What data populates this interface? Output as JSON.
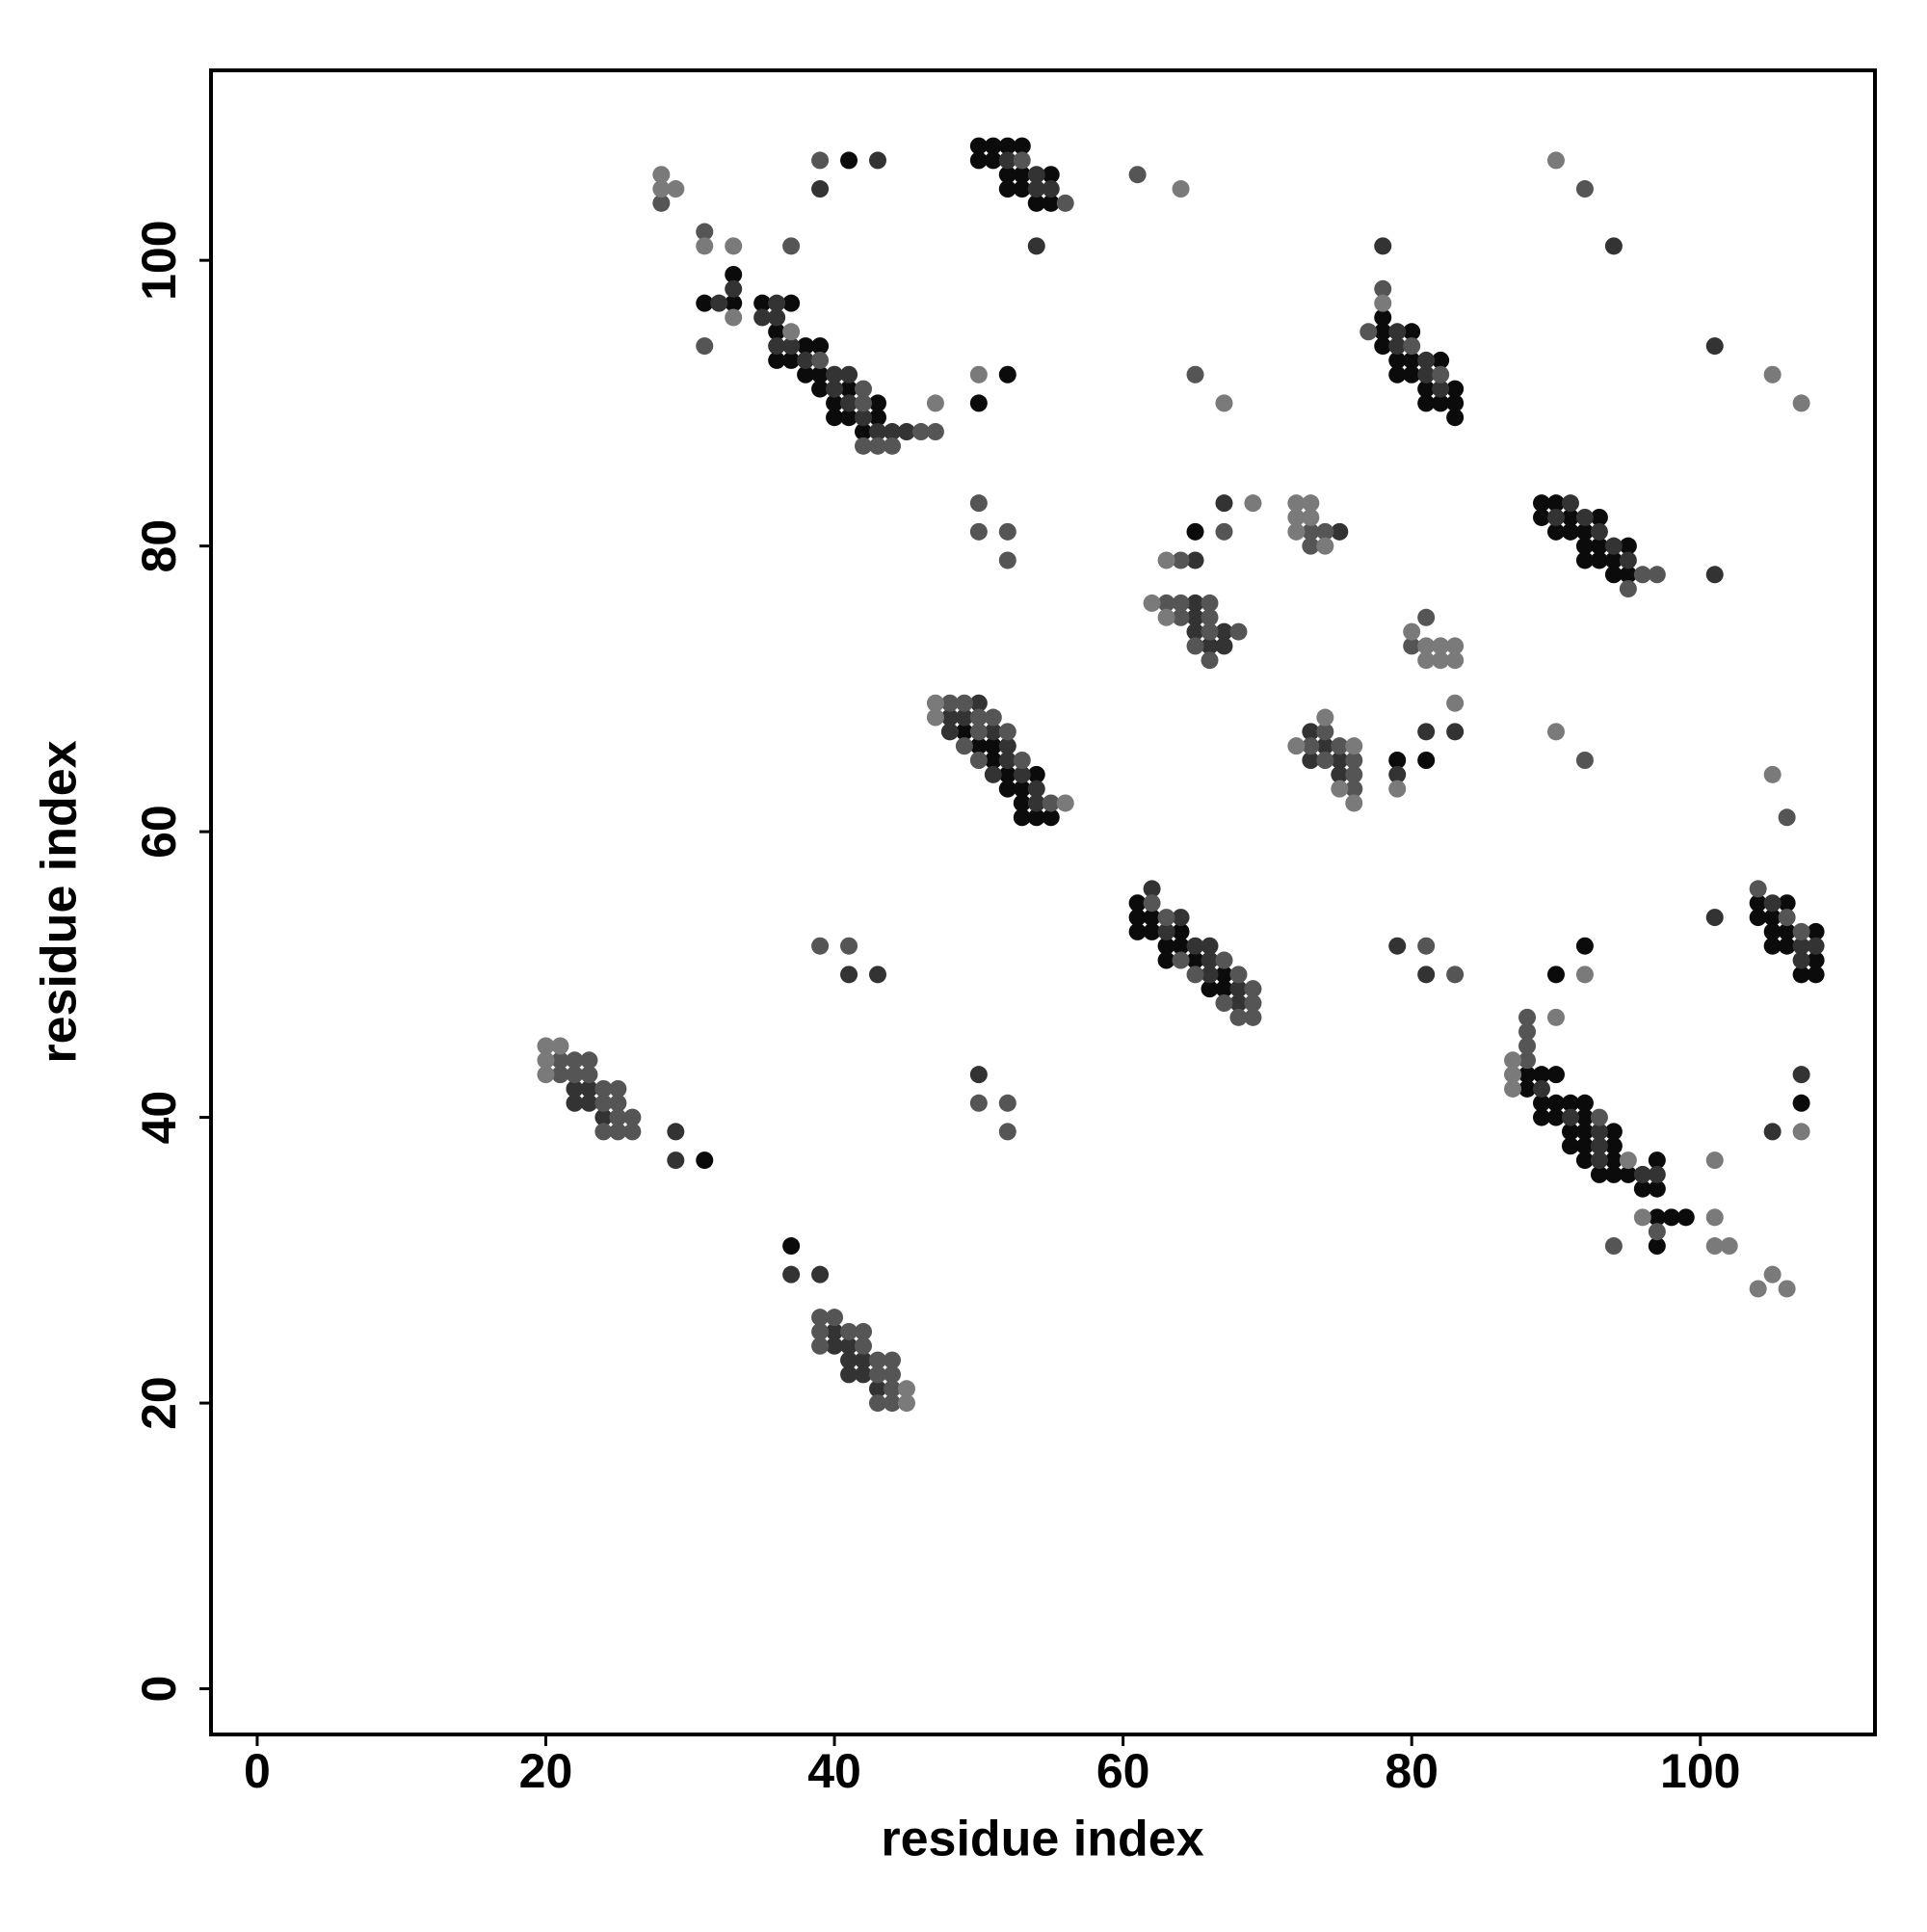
{
  "chart_data": {
    "type": "scatter",
    "xlabel": "residue index",
    "ylabel": "residue index",
    "xlim": [
      -3.2,
      112.1
    ],
    "ylim": [
      -3.2,
      113.3
    ],
    "xticks": [
      0,
      20,
      40,
      60,
      80,
      100
    ],
    "yticks": [
      0,
      20,
      40,
      60,
      80,
      100
    ],
    "series": [
      {
        "color": "#0b0b0b",
        "x": [
          31,
          37,
          41,
          33,
          33,
          31,
          35,
          37,
          36,
          38,
          39,
          36,
          37,
          38,
          39,
          39,
          41,
          40,
          43,
          40,
          41,
          43,
          42,
          50,
          52,
          50,
          51,
          52,
          53,
          50,
          51,
          52,
          53,
          55,
          52,
          53,
          54,
          55,
          49,
          50,
          51,
          51,
          52,
          54,
          52,
          53,
          53,
          53,
          54,
          55,
          61,
          61,
          62,
          61,
          62,
          64,
          63,
          64,
          63,
          65,
          67,
          66,
          67,
          65,
          79,
          81,
          78,
          78,
          80,
          78,
          79,
          80,
          82,
          79,
          80,
          81,
          83,
          81,
          82,
          83,
          83,
          89,
          90,
          89,
          91,
          93,
          90,
          91,
          92,
          92,
          93,
          95,
          92,
          93,
          94,
          94,
          95,
          88,
          89,
          90,
          88,
          89,
          90,
          91,
          92,
          90,
          92,
          89,
          91,
          92,
          94,
          91,
          92,
          94,
          92,
          94,
          97,
          93,
          94,
          95,
          96,
          97,
          97,
          98,
          99,
          97,
          90,
          92,
          107,
          104,
          106,
          104,
          105,
          105,
          106,
          108,
          105,
          106,
          108,
          107,
          108
        ],
        "y": [
          37,
          31,
          107,
          99,
          97,
          97,
          97,
          97,
          95,
          94,
          94,
          93,
          93,
          92,
          92,
          91,
          91,
          90,
          90,
          89,
          89,
          89,
          88,
          90,
          92,
          108,
          108,
          108,
          108,
          107,
          107,
          106,
          106,
          106,
          105,
          105,
          104,
          104,
          67,
          66,
          66,
          65,
          64,
          64,
          63,
          63,
          62,
          61,
          61,
          61,
          55,
          54,
          54,
          53,
          53,
          53,
          52,
          52,
          51,
          51,
          50,
          49,
          49,
          81,
          65,
          65,
          96,
          95,
          95,
          94,
          93,
          93,
          93,
          92,
          92,
          91,
          91,
          90,
          90,
          90,
          89,
          83,
          83,
          82,
          82,
          82,
          81,
          81,
          81,
          80,
          80,
          80,
          79,
          79,
          79,
          78,
          78,
          43,
          43,
          43,
          42,
          41,
          41,
          41,
          41,
          40,
          40,
          40,
          39,
          39,
          39,
          38,
          38,
          38,
          37,
          37,
          37,
          36,
          36,
          36,
          35,
          35,
          33,
          33,
          33,
          31,
          50,
          52,
          41,
          55,
          55,
          54,
          54,
          53,
          53,
          53,
          52,
          52,
          51,
          50,
          50
        ]
      },
      {
        "color": "#333333",
        "x": [
          22,
          23,
          22,
          23,
          24,
          29,
          29,
          37,
          39,
          40,
          40,
          41,
          41,
          42,
          41,
          42,
          43,
          41,
          43,
          50,
          43,
          39,
          32,
          33,
          36,
          35,
          36,
          36,
          37,
          38,
          40,
          41,
          40,
          41,
          42,
          43,
          44,
          45,
          52,
          54,
          54,
          55,
          54,
          50,
          48,
          49,
          48,
          51,
          52,
          52,
          51,
          53,
          54,
          54,
          62,
          64,
          63,
          65,
          66,
          66,
          66,
          68,
          68,
          67,
          65,
          65,
          65,
          65,
          67,
          66,
          67,
          75,
          73,
          74,
          73,
          75,
          75,
          81,
          83,
          79,
          79,
          81,
          78,
          79,
          79,
          81,
          81,
          82,
          91,
          90,
          92,
          93,
          94,
          95,
          101,
          89,
          91,
          93,
          93,
          93,
          96,
          97,
          94,
          101,
          101,
          107,
          105,
          105,
          107,
          108,
          107
        ],
        "y": [
          42,
          42,
          41,
          41,
          40,
          39,
          37,
          29,
          29,
          25,
          24,
          24,
          23,
          23,
          22,
          22,
          21,
          50,
          50,
          43,
          107,
          105,
          97,
          98,
          97,
          96,
          96,
          94,
          94,
          93,
          92,
          92,
          91,
          90,
          89,
          88,
          88,
          88,
          107,
          106,
          105,
          105,
          101,
          69,
          68,
          68,
          67,
          67,
          66,
          65,
          64,
          64,
          63,
          62,
          56,
          54,
          53,
          52,
          51,
          52,
          50,
          49,
          48,
          83,
          79,
          76,
          75,
          74,
          74,
          73,
          73,
          81,
          67,
          66,
          65,
          65,
          64,
          67,
          67,
          64,
          52,
          50,
          101,
          95,
          94,
          93,
          92,
          91,
          83,
          82,
          82,
          81,
          80,
          79,
          78,
          42,
          40,
          39,
          38,
          37,
          36,
          36,
          101,
          94,
          54,
          43,
          39,
          55,
          52,
          52,
          51
        ]
      },
      {
        "color": "#555555",
        "x": [
          21,
          22,
          21,
          22,
          23,
          23,
          24,
          25,
          24,
          25,
          26,
          25,
          24,
          26,
          25,
          39,
          40,
          39,
          41,
          42,
          39,
          42,
          43,
          44,
          43,
          44,
          44,
          43,
          44,
          39,
          41,
          50,
          52,
          52,
          28,
          31,
          37,
          31,
          39,
          39,
          42,
          42,
          46,
          47,
          42,
          43,
          44,
          53,
          56,
          50,
          50,
          52,
          52,
          48,
          49,
          50,
          51,
          50,
          52,
          49,
          50,
          53,
          55,
          62,
          63,
          64,
          67,
          65,
          68,
          69,
          67,
          69,
          68,
          69,
          61,
          65,
          67,
          64,
          63,
          64,
          66,
          64,
          66,
          66,
          68,
          65,
          66,
          73,
          74,
          73,
          74,
          73,
          75,
          74,
          76,
          76,
          76,
          81,
          80,
          81,
          83,
          78,
          77,
          80,
          82,
          96,
          97,
          95,
          88,
          88,
          88,
          88,
          93,
          97,
          94,
          92,
          92,
          106,
          104,
          106,
          107
        ],
        "y": [
          44,
          44,
          43,
          43,
          44,
          43,
          42,
          42,
          41,
          41,
          40,
          39,
          39,
          39,
          40,
          26,
          26,
          25,
          25,
          25,
          24,
          24,
          23,
          23,
          22,
          22,
          21,
          20,
          20,
          52,
          52,
          41,
          41,
          39,
          104,
          102,
          101,
          94,
          107,
          93,
          91,
          90,
          88,
          88,
          87,
          87,
          87,
          107,
          104,
          83,
          81,
          81,
          79,
          69,
          69,
          68,
          68,
          67,
          67,
          66,
          65,
          65,
          62,
          55,
          54,
          51,
          51,
          50,
          50,
          49,
          48,
          48,
          47,
          47,
          106,
          92,
          81,
          79,
          76,
          76,
          76,
          75,
          75,
          74,
          74,
          73,
          72,
          81,
          81,
          80,
          67,
          66,
          66,
          65,
          65,
          64,
          63,
          75,
          73,
          52,
          50,
          98,
          95,
          94,
          92,
          78,
          78,
          77,
          47,
          46,
          45,
          44,
          40,
          32,
          31,
          105,
          65,
          61,
          56,
          54,
          53
        ]
      },
      {
        "color": "#7a7a7a",
        "x": [
          20,
          21,
          20,
          20,
          45,
          45,
          28,
          28,
          29,
          31,
          33,
          33,
          37,
          47,
          50,
          47,
          47,
          56,
          64,
          67,
          69,
          63,
          62,
          63,
          72,
          73,
          72,
          73,
          72,
          74,
          72,
          74,
          76,
          75,
          76,
          80,
          81,
          82,
          83,
          81,
          82,
          83,
          83,
          79,
          78,
          87,
          87,
          87,
          95,
          96,
          90,
          92,
          90,
          105,
          107,
          90,
          105,
          107,
          101,
          101,
          101,
          102,
          104,
          105,
          106
        ],
        "y": [
          45,
          45,
          44,
          43,
          21,
          20,
          106,
          105,
          105,
          101,
          101,
          96,
          95,
          90,
          92,
          69,
          68,
          62,
          105,
          90,
          83,
          79,
          76,
          75,
          83,
          83,
          82,
          82,
          81,
          80,
          66,
          68,
          66,
          63,
          62,
          74,
          73,
          73,
          73,
          72,
          72,
          72,
          69,
          63,
          97,
          44,
          43,
          42,
          37,
          33,
          47,
          50,
          107,
          92,
          90,
          67,
          64,
          39,
          37,
          33,
          31,
          31,
          28,
          29,
          28
        ]
      }
    ]
  }
}
